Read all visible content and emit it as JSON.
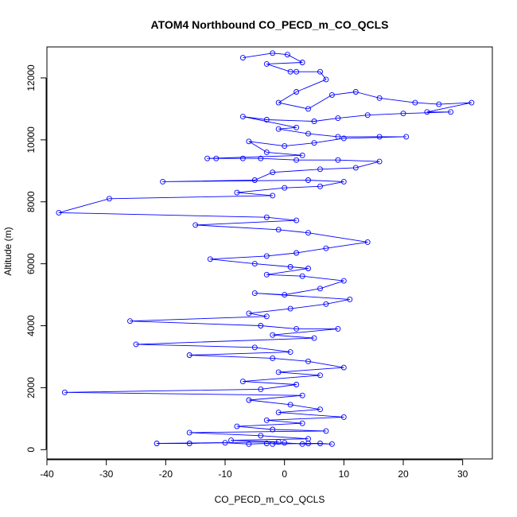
{
  "chart_data": {
    "type": "line",
    "title": "ATOM4 Northbound CO_PECD_m_CO_QCLS",
    "xlabel": "CO_PECD_m_CO_QCLS",
    "ylabel": "Altitude (m)",
    "xlim": [
      -40,
      35
    ],
    "ylim": [
      -300,
      13000
    ],
    "x_ticks": [
      -40,
      -30,
      -20,
      -10,
      0,
      10,
      20,
      30
    ],
    "y_ticks": [
      0,
      2000,
      4000,
      6000,
      8000,
      10000,
      12000
    ],
    "grid": false,
    "legend": "none",
    "series": [
      {
        "color": "#0000ff",
        "marker": "open-circle",
        "points": [
          [
            -7,
            12650
          ],
          [
            -2,
            12800
          ],
          [
            0.5,
            12750
          ],
          [
            3,
            12500
          ],
          [
            -3,
            12450
          ],
          [
            1,
            12200
          ],
          [
            2,
            12200
          ],
          [
            6,
            12200
          ],
          [
            7,
            11950
          ],
          [
            2,
            11550
          ],
          [
            -1,
            11200
          ],
          [
            4,
            11000
          ],
          [
            8,
            11450
          ],
          [
            12,
            11550
          ],
          [
            16,
            11350
          ],
          [
            22,
            11200
          ],
          [
            26,
            11150
          ],
          [
            31.5,
            11200
          ],
          [
            24,
            10900
          ],
          [
            28,
            10900
          ],
          [
            20,
            10850
          ],
          [
            14,
            10800
          ],
          [
            9,
            10700
          ],
          [
            5,
            10600
          ],
          [
            -3,
            10650
          ],
          [
            -7,
            10750
          ],
          [
            2,
            10400
          ],
          [
            -1,
            10350
          ],
          [
            4,
            10200
          ],
          [
            9,
            10100
          ],
          [
            16,
            10100
          ],
          [
            20.5,
            10100
          ],
          [
            10,
            10050
          ],
          [
            5,
            9900
          ],
          [
            0,
            9800
          ],
          [
            -6,
            9950
          ],
          [
            -3,
            9600
          ],
          [
            3,
            9500
          ],
          [
            -13,
            9400
          ],
          [
            -11.5,
            9400
          ],
          [
            -7,
            9400
          ],
          [
            -4,
            9400
          ],
          [
            2,
            9350
          ],
          [
            9,
            9350
          ],
          [
            16,
            9300
          ],
          [
            12,
            9100
          ],
          [
            6,
            9050
          ],
          [
            -2,
            8950
          ],
          [
            -5,
            8700
          ],
          [
            -20.5,
            8650
          ],
          [
            4,
            8700
          ],
          [
            10,
            8650
          ],
          [
            6,
            8500
          ],
          [
            0,
            8450
          ],
          [
            -8,
            8300
          ],
          [
            -2,
            8200
          ],
          [
            -29.5,
            8100
          ],
          [
            -38,
            7650
          ],
          [
            -3,
            7500
          ],
          [
            2,
            7400
          ],
          [
            -15,
            7250
          ],
          [
            -1,
            7100
          ],
          [
            4,
            7000
          ],
          [
            14,
            6700
          ],
          [
            7,
            6500
          ],
          [
            2,
            6350
          ],
          [
            -3,
            6250
          ],
          [
            -12.5,
            6150
          ],
          [
            -5,
            6000
          ],
          [
            1,
            5900
          ],
          [
            4,
            5850
          ],
          [
            -3,
            5650
          ],
          [
            3,
            5600
          ],
          [
            10,
            5450
          ],
          [
            6,
            5200
          ],
          [
            0,
            5000
          ],
          [
            -5,
            5050
          ],
          [
            11,
            4850
          ],
          [
            7,
            4700
          ],
          [
            1,
            4550
          ],
          [
            -6,
            4400
          ],
          [
            -3,
            4300
          ],
          [
            -26,
            4150
          ],
          [
            -4,
            4000
          ],
          [
            2,
            3900
          ],
          [
            9,
            3900
          ],
          [
            -2,
            3700
          ],
          [
            5,
            3600
          ],
          [
            -25,
            3400
          ],
          [
            -5,
            3300
          ],
          [
            1,
            3150
          ],
          [
            -16,
            3050
          ],
          [
            -2,
            2950
          ],
          [
            4,
            2850
          ],
          [
            10,
            2650
          ],
          [
            -1,
            2500
          ],
          [
            6,
            2400
          ],
          [
            -7,
            2200
          ],
          [
            2,
            2100
          ],
          [
            -4,
            1950
          ],
          [
            -37,
            1850
          ],
          [
            3,
            1750
          ],
          [
            -6,
            1600
          ],
          [
            1,
            1450
          ],
          [
            6,
            1300
          ],
          [
            -1,
            1200
          ],
          [
            10,
            1050
          ],
          [
            -3,
            950
          ],
          [
            3,
            850
          ],
          [
            -8,
            750
          ],
          [
            -2,
            650
          ],
          [
            7,
            600
          ],
          [
            -16,
            550
          ],
          [
            -4,
            450
          ],
          [
            4,
            350
          ],
          [
            -9,
            300
          ],
          [
            -1,
            250
          ],
          [
            -21.5,
            200
          ],
          [
            -16,
            200
          ],
          [
            -10,
            220
          ],
          [
            -6,
            180
          ],
          [
            -3,
            200
          ],
          [
            0,
            220
          ],
          [
            3,
            180
          ],
          [
            6,
            200
          ],
          [
            8,
            180
          ],
          [
            4,
            200
          ],
          [
            -2,
            180
          ]
        ]
      }
    ]
  }
}
